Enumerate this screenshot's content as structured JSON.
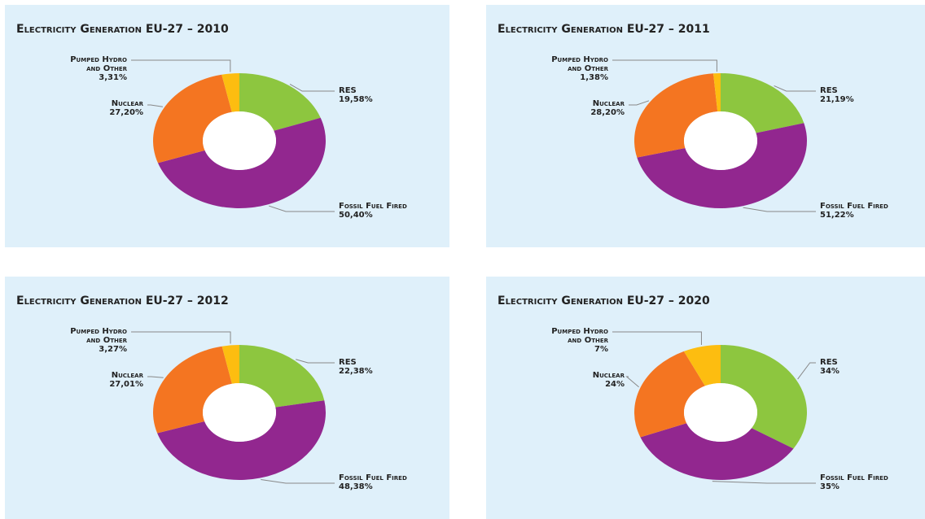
{
  "chart_data": [
    {
      "type": "pie",
      "title": "Electricity Generation EU-27 – 2010",
      "categories": [
        "RES",
        "Fossil Fuel Fired",
        "Nuclear",
        "Pumped Hydro and Other"
      ],
      "values": [
        19.58,
        50.4,
        27.2,
        3.31
      ],
      "value_labels": [
        "19,58%",
        "50,40%",
        "27,20%",
        "3,31%"
      ],
      "colors": [
        "#8dc63f",
        "#92278f",
        "#f47521",
        "#fdbd10"
      ]
    },
    {
      "type": "pie",
      "title": "Electricity Generation EU-27 – 2011",
      "categories": [
        "RES",
        "Fossil Fuel Fired",
        "Nuclear",
        "Pumped Hydro and Other"
      ],
      "values": [
        21.19,
        51.22,
        28.2,
        1.38
      ],
      "value_labels": [
        "21,19%",
        "51,22%",
        "28,20%",
        "1,38%"
      ],
      "colors": [
        "#8dc63f",
        "#92278f",
        "#f47521",
        "#fdbd10"
      ]
    },
    {
      "type": "pie",
      "title": "Electricity Generation EU-27 – 2012",
      "categories": [
        "RES",
        "Fossil Fuel Fired",
        "Nuclear",
        "Pumped Hydro and Other"
      ],
      "values": [
        22.38,
        48.38,
        27.01,
        3.27
      ],
      "value_labels": [
        "22,38%",
        "48,38%",
        "27,01%",
        "3,27%"
      ],
      "colors": [
        "#8dc63f",
        "#92278f",
        "#f47521",
        "#fdbd10"
      ]
    },
    {
      "type": "pie",
      "title": "Electricity Generation EU-27 – 2020",
      "categories": [
        "RES",
        "Fossil Fuel Fired",
        "Nuclear",
        "Pumped Hydro and Other"
      ],
      "values": [
        34,
        35,
        24,
        7
      ],
      "value_labels": [
        "34%",
        "35%",
        "24%",
        "7%"
      ],
      "colors": [
        "#8dc63f",
        "#92278f",
        "#f47521",
        "#fdbd10"
      ]
    }
  ]
}
